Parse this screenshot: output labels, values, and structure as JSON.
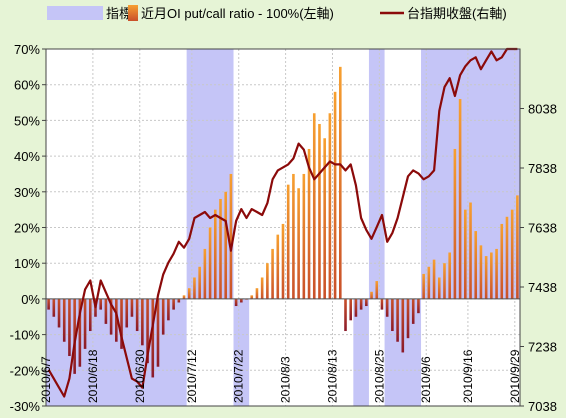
{
  "chart_data": {
    "type": "bar+line",
    "legend": {
      "position": "top",
      "items": [
        {
          "label": "指標",
          "color": "#c5c5f7",
          "kind": "area"
        },
        {
          "label": "近月OI put/call ratio - 100%(左軸)",
          "color": "#f0a040",
          "kind": "bar"
        },
        {
          "label": "台指期收盤(右軸)",
          "color": "#8b0a0a",
          "kind": "line"
        }
      ]
    },
    "y_left": {
      "min": -30,
      "max": 70,
      "ticks": [
        "70%",
        "60%",
        "50%",
        "40%",
        "30%",
        "20%",
        "10%",
        "0%",
        "-10%",
        "-20%",
        "-30%"
      ]
    },
    "y_right": {
      "min": 7038,
      "max": 8238,
      "ticks": [
        "8038",
        "7838",
        "7638",
        "7438",
        "7238",
        "7038"
      ],
      "tick_values": [
        8038,
        7838,
        7638,
        7438,
        7238,
        7038
      ]
    },
    "x_ticks": [
      {
        "index": 0,
        "label": "2010/6/7"
      },
      {
        "index": 9,
        "label": "2010/6/18"
      },
      {
        "index": 18,
        "label": "2010/6/30"
      },
      {
        "index": 28,
        "label": "2010/7/12"
      },
      {
        "index": 37,
        "label": "2010/7/22"
      },
      {
        "index": 46,
        "label": "2010/8/3"
      },
      {
        "index": 55,
        "label": "2010/8/13"
      },
      {
        "index": 64,
        "label": "2010/8/25"
      },
      {
        "index": 73,
        "label": "2010/9/6"
      },
      {
        "index": 81,
        "label": "2010/9/16"
      },
      {
        "index": 90,
        "label": "2010/9/29"
      }
    ],
    "n_points": 91,
    "indicator_regions": [
      {
        "start": 0,
        "end": 26,
        "sign": "neg"
      },
      {
        "start": 27,
        "end": 35,
        "sign": "pos"
      },
      {
        "start": 36,
        "end": 38,
        "sign": "neg"
      },
      {
        "start": 59,
        "end": 61,
        "sign": "neg"
      },
      {
        "start": 62,
        "end": 64,
        "sign": "pos"
      },
      {
        "start": 65,
        "end": 71,
        "sign": "neg"
      },
      {
        "start": 72,
        "end": 90,
        "sign": "pos"
      }
    ],
    "bars": [
      -3,
      -5,
      -8,
      -12,
      -16,
      -21,
      -19,
      -14,
      -9,
      -5,
      -3,
      -7,
      -10,
      -12,
      -14,
      -8,
      -5,
      -9,
      -13,
      -18,
      -22,
      -19,
      -10,
      -6,
      -3,
      -1,
      1,
      3,
      6,
      9,
      14,
      20,
      25,
      28,
      30,
      35,
      -2,
      -1,
      0,
      1,
      3,
      6,
      10,
      14,
      18,
      21,
      32,
      35,
      31,
      35,
      42,
      52,
      49,
      45,
      52,
      58,
      65,
      -9,
      -6,
      -5,
      -3,
      -2,
      2,
      5,
      -3,
      -5,
      -9,
      -12,
      -15,
      -11,
      -7,
      -4,
      7,
      9,
      11,
      6,
      10,
      13,
      42,
      56,
      25,
      27,
      19,
      15,
      12,
      13,
      14,
      21,
      23,
      25,
      29
    ],
    "close": [
      7160,
      7130,
      7100,
      7070,
      7130,
      7250,
      7350,
      7430,
      7460,
      7370,
      7460,
      7420,
      7380,
      7350,
      7270,
      7200,
      7130,
      7120,
      7100,
      7210,
      7310,
      7410,
      7480,
      7520,
      7550,
      7590,
      7570,
      7600,
      7670,
      7680,
      7690,
      7670,
      7680,
      7670,
      7660,
      7560,
      7660,
      7700,
      7670,
      7700,
      7690,
      7680,
      7720,
      7800,
      7830,
      7840,
      7850,
      7870,
      7920,
      7900,
      7840,
      7800,
      7820,
      7840,
      7860,
      7850,
      7850,
      7830,
      7850,
      7780,
      7670,
      7630,
      7600,
      7640,
      7680,
      7590,
      7620,
      7670,
      7740,
      7810,
      7830,
      7820,
      7800,
      7810,
      7830,
      8030,
      8110,
      8140,
      8080,
      8150,
      8180,
      8200,
      8210,
      8170,
      8200,
      8230,
      8200,
      8210,
      8238,
      8238,
      8238
    ]
  }
}
